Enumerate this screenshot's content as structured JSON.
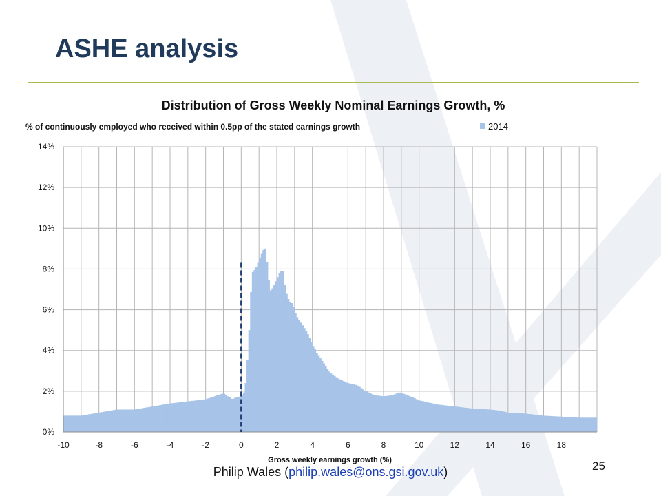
{
  "slide": {
    "title": "ASHE analysis",
    "footer_text_before": "Philip Wales (",
    "footer_link": "philip.wales@ons.gsi.gov.uk",
    "footer_text_after": ")",
    "page_number": "25"
  },
  "chart_data": {
    "type": "bar",
    "title": "Distribution of Gross Weekly Nominal Earnings Growth, %",
    "subtitle": "% of continuously employed who received within 0.5pp of the stated earnings growth",
    "xlabel": "Gross weekly earnings growth (%)",
    "ylabel": "",
    "xlim": [
      -10,
      20
    ],
    "ylim": [
      0,
      14
    ],
    "x_ticks": [
      "-10",
      "-8",
      "-6",
      "-4",
      "-2",
      "0",
      "2",
      "4",
      "6",
      "8",
      "10",
      "12",
      "14",
      "16",
      "18"
    ],
    "y_ticks": [
      "0%",
      "2%",
      "4%",
      "6%",
      "8%",
      "10%",
      "12%",
      "14%"
    ],
    "grid": true,
    "legend_position": "top-right",
    "bar_width": 0.1,
    "reference_line": {
      "x": 0,
      "y_top": 8.3,
      "style": "dashed"
    },
    "series": [
      {
        "name": "2014",
        "color": "#a7c4e8",
        "anchors": [
          [
            -10.0,
            0.8
          ],
          [
            -9.0,
            0.8
          ],
          [
            -8.0,
            0.95
          ],
          [
            -7.0,
            1.1
          ],
          [
            -6.0,
            1.1
          ],
          [
            -5.0,
            1.25
          ],
          [
            -4.0,
            1.4
          ],
          [
            -3.0,
            1.5
          ],
          [
            -2.0,
            1.6
          ],
          [
            -1.0,
            1.9
          ],
          [
            -0.5,
            1.6
          ],
          [
            -0.3,
            1.7
          ],
          [
            0.0,
            1.75
          ],
          [
            0.2,
            2.0
          ],
          [
            0.3,
            2.8
          ],
          [
            0.45,
            5.0
          ],
          [
            0.6,
            7.8
          ],
          [
            0.8,
            8.0
          ],
          [
            1.0,
            8.4
          ],
          [
            1.2,
            8.9
          ],
          [
            1.35,
            9.0
          ],
          [
            1.5,
            8.0
          ],
          [
            1.6,
            6.9
          ],
          [
            1.8,
            7.1
          ],
          [
            2.0,
            7.5
          ],
          [
            2.2,
            7.9
          ],
          [
            2.35,
            7.9
          ],
          [
            2.5,
            6.9
          ],
          [
            2.7,
            6.4
          ],
          [
            2.9,
            6.3
          ],
          [
            3.1,
            5.7
          ],
          [
            3.4,
            5.3
          ],
          [
            3.7,
            4.9
          ],
          [
            4.0,
            4.3
          ],
          [
            4.3,
            3.8
          ],
          [
            4.7,
            3.3
          ],
          [
            5.0,
            2.9
          ],
          [
            5.5,
            2.6
          ],
          [
            6.0,
            2.4
          ],
          [
            6.5,
            2.3
          ],
          [
            7.0,
            2.0
          ],
          [
            7.5,
            1.8
          ],
          [
            8.0,
            1.75
          ],
          [
            8.5,
            1.8
          ],
          [
            8.9,
            1.95
          ],
          [
            9.5,
            1.75
          ],
          [
            10.0,
            1.55
          ],
          [
            11.0,
            1.35
          ],
          [
            12.0,
            1.25
          ],
          [
            13.0,
            1.15
          ],
          [
            14.0,
            1.1
          ],
          [
            14.5,
            1.05
          ],
          [
            15.0,
            0.95
          ],
          [
            16.0,
            0.9
          ],
          [
            17.0,
            0.8
          ],
          [
            18.0,
            0.75
          ],
          [
            19.0,
            0.7
          ],
          [
            20.0,
            0.7
          ]
        ]
      }
    ]
  }
}
